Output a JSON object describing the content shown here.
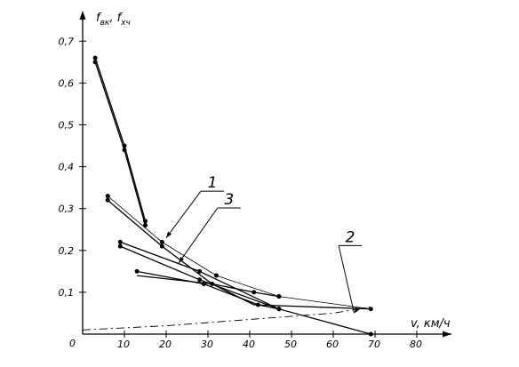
{
  "chart_data": {
    "type": "line",
    "xlabel": "v, км/ч",
    "ylabel_parts": {
      "f1": "f",
      "s1": "вк",
      "sep": ", ",
      "f2": "f",
      "s2": "хч"
    },
    "xlim": [
      0,
      80
    ],
    "ylim": [
      0,
      0.7
    ],
    "x_ticks": [
      10,
      20,
      30,
      40,
      50,
      60,
      70,
      80
    ],
    "x_tick_labels": [
      "10",
      "20",
      "30",
      "40",
      "50",
      "60",
      "70",
      "80"
    ],
    "y_ticks": [
      0.1,
      0.2,
      0.3,
      0.4,
      0.5,
      0.6,
      0.7
    ],
    "y_tick_labels": [
      "0,1",
      "0,2",
      "0,3",
      "0,4",
      "0,5",
      "0,6",
      "0,7"
    ],
    "origin_label": "0",
    "grid": false,
    "series": [
      {
        "points": [
          [
            3,
            0.66
          ],
          [
            10,
            0.45
          ],
          [
            15,
            0.27
          ]
        ],
        "style": "solid",
        "width": 1.3,
        "markers": true
      },
      {
        "points": [
          [
            3,
            0.65
          ],
          [
            10,
            0.44
          ],
          [
            15,
            0.26
          ]
        ],
        "style": "solid",
        "width": 1.3,
        "markers": true
      },
      {
        "points": [
          [
            6,
            0.33
          ],
          [
            19,
            0.22
          ],
          [
            32,
            0.14
          ],
          [
            47,
            0.09
          ],
          [
            69,
            0.06
          ]
        ],
        "style": "solid",
        "width": 0.8,
        "markers": true
      },
      {
        "points": [
          [
            6,
            0.32
          ],
          [
            19,
            0.21
          ],
          [
            31,
            0.12
          ],
          [
            41,
            0.1
          ],
          [
            47,
            0.09
          ]
        ],
        "style": "solid",
        "width": 1.3,
        "markers": true
      },
      {
        "points": [
          [
            9,
            0.22
          ],
          [
            28,
            0.15
          ],
          [
            47,
            0.06
          ],
          [
            69,
            0.0
          ]
        ],
        "style": "solid",
        "width": 1.3,
        "markers": true
      },
      {
        "points": [
          [
            9,
            0.21
          ],
          [
            28,
            0.13
          ],
          [
            47,
            0.06
          ]
        ],
        "style": "solid",
        "width": 1.3,
        "markers": true
      },
      {
        "points": [
          [
            13,
            0.15
          ],
          [
            29,
            0.12
          ],
          [
            42,
            0.07
          ],
          [
            47,
            0.06
          ]
        ],
        "style": "solid",
        "width": 1.3,
        "markers": true
      },
      {
        "points": [
          [
            13,
            0.14
          ],
          [
            31,
            0.12
          ],
          [
            41,
            0.07
          ],
          [
            69,
            0.06
          ]
        ],
        "style": "solid",
        "width": 1.3,
        "markers": false
      },
      {
        "points": [
          [
            0,
            0.01
          ],
          [
            20,
            0.02
          ],
          [
            40,
            0.035
          ],
          [
            60,
            0.05
          ],
          [
            69,
            0.065
          ]
        ],
        "style": "dashed",
        "width": 0.9,
        "markers": false
      }
    ],
    "annotations": [
      {
        "text": "1",
        "target": [
          20,
          0.23
        ],
        "label_at": [
          30,
          0.35
        ]
      },
      {
        "text": "3",
        "target": [
          23,
          0.17
        ],
        "label_at": [
          34,
          0.31
        ]
      },
      {
        "text": "2",
        "target": [
          65,
          0.05
        ],
        "label_at": [
          63,
          0.22
        ]
      }
    ]
  }
}
